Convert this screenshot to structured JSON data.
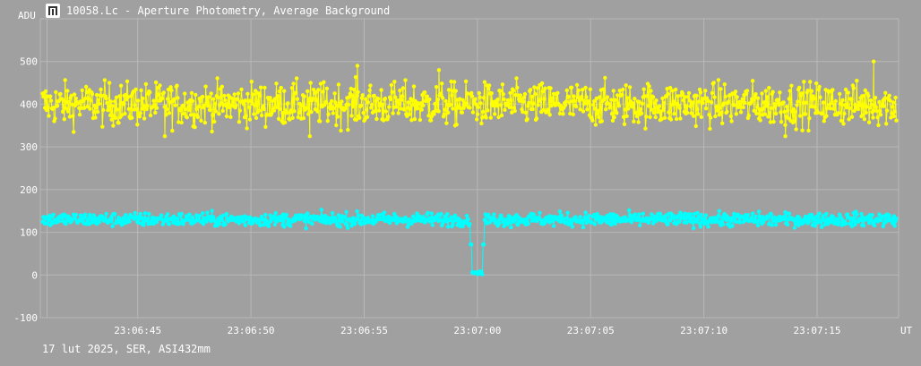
{
  "window": {
    "title": "10058.Lc - Aperture Photometry, Average Background",
    "icon": "lightcurve-app-icon"
  },
  "footer": {
    "caption": "17 lut 2025, SER, ASI432mm"
  },
  "colors": {
    "background": "#a0a0a0",
    "grid": "#b8b8b8",
    "text": "#ffffff",
    "aperture": "#ffff00",
    "background_series": "#00ffff"
  },
  "chart_data": {
    "type": "line",
    "title": "10058.Lc - Aperture Photometry, Average Background",
    "xlabel": "UT",
    "ylabel": "ADU",
    "xlim": [
      "23:06:40.7",
      "23:07:18.6"
    ],
    "ylim": [
      -100,
      600
    ],
    "grid": true,
    "y_ticks": [
      -100,
      0,
      100,
      200,
      300,
      400,
      500
    ],
    "x_ticks": [
      "23:06:45",
      "23:06:50",
      "23:06:55",
      "23:07:00",
      "23:07:05",
      "23:07:10",
      "23:07:15"
    ],
    "series": [
      {
        "name": "",
        "color": "#ffff00",
        "marker": "circle",
        "mean": 400,
        "spread": 25,
        "peaks": [
          {
            "t": "23:06:54.7",
            "value": 490
          },
          {
            "t": "23:06:58.3",
            "value": 480
          },
          {
            "t": "23:07:17.5",
            "value": 500
          },
          {
            "t": "23:06:46.2",
            "value": 325
          },
          {
            "t": "23:06:52.6",
            "value": 325
          },
          {
            "t": "23:07:13.6",
            "value": 325
          }
        ]
      },
      {
        "name": "",
        "color": "#00ffff",
        "marker": "circle",
        "mean": 130,
        "spread": 8,
        "dip": {
          "start": "23:06:59.7",
          "end": "23:07:00.3",
          "value": 0
        }
      }
    ]
  }
}
